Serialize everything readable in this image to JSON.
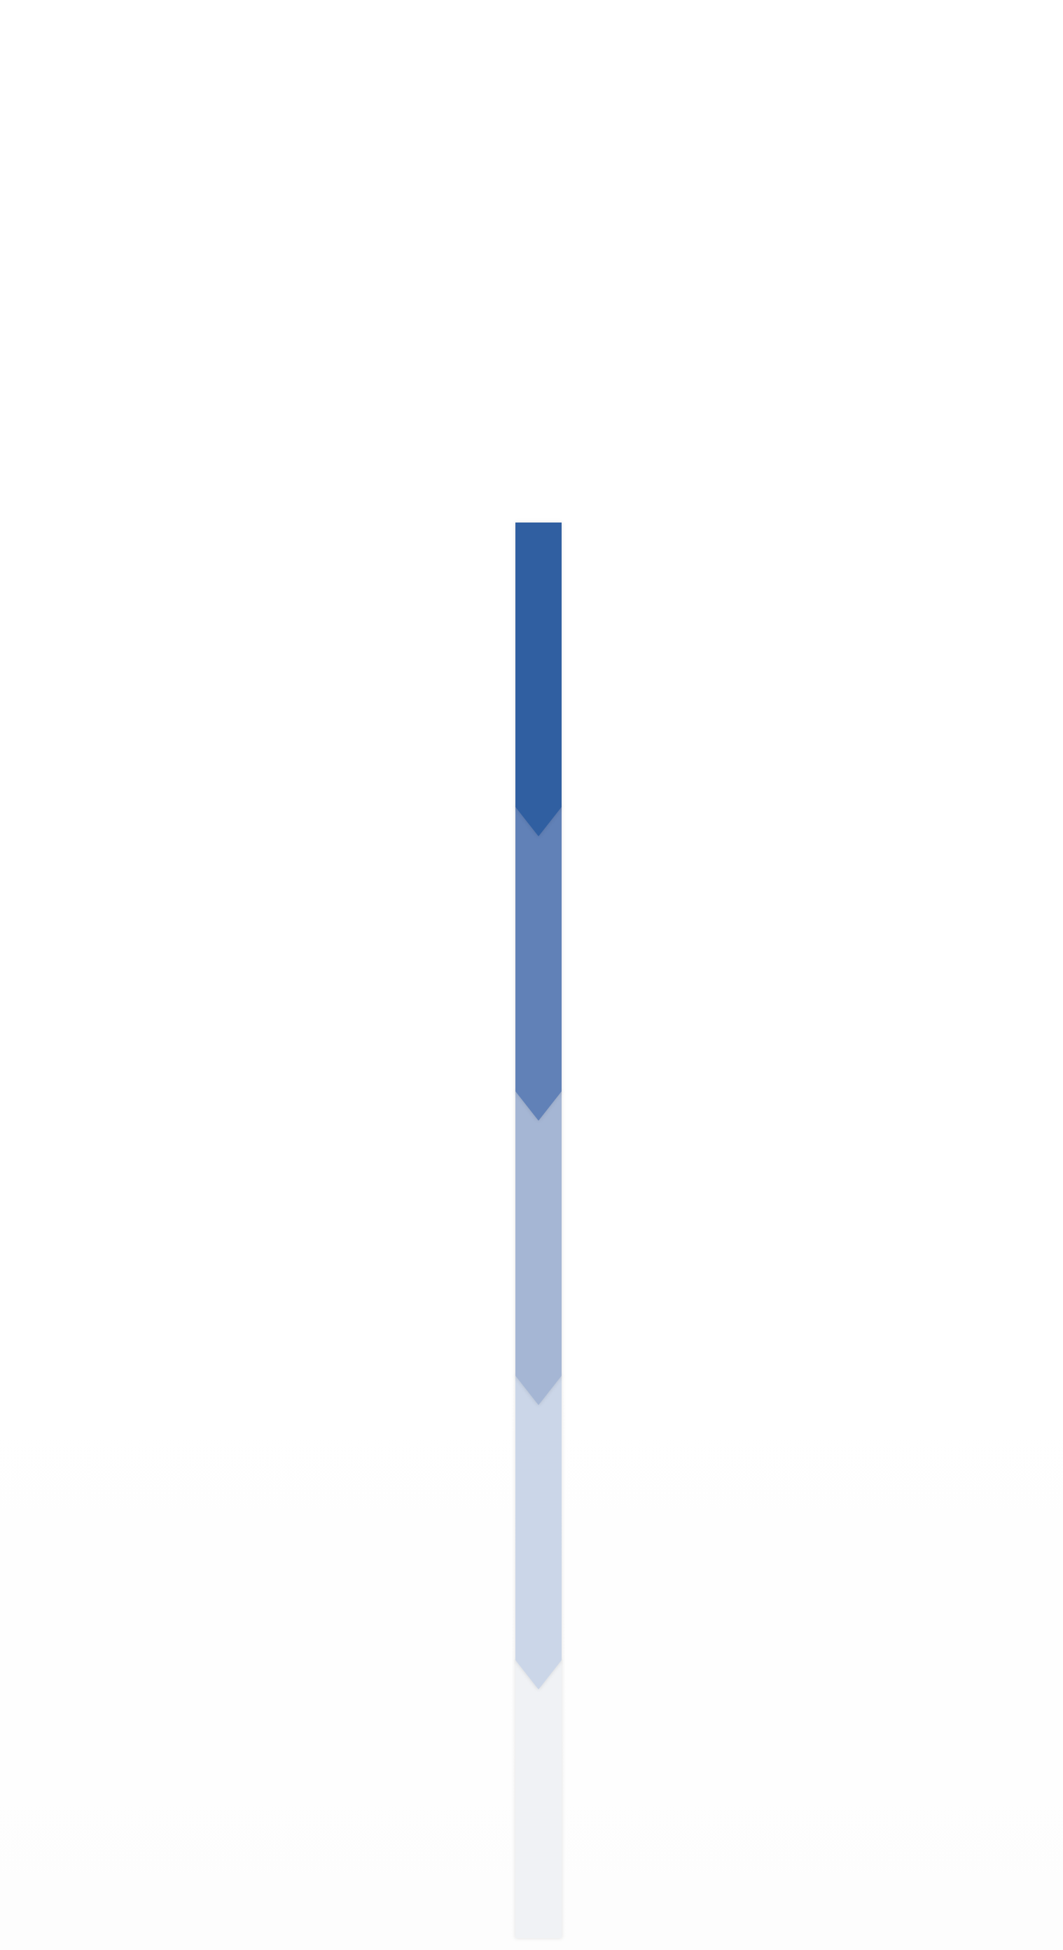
{
  "diagram": {
    "type": "stacked-chevron-column",
    "orientation": "vertical",
    "segments": [
      {
        "fill": "#305fa1"
      },
      {
        "fill": "#6181b7"
      },
      {
        "fill": "#a5b6d4"
      },
      {
        "fill": "#cbd6e8"
      },
      {
        "fill": "#f0f2f5"
      }
    ]
  }
}
